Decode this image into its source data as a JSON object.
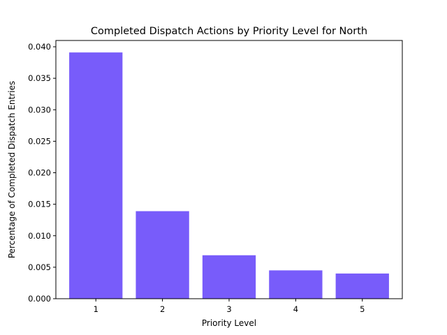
{
  "chart_data": {
    "type": "bar",
    "title": "Completed Dispatch Actions by Priority Level for North",
    "xlabel": "Priority Level",
    "ylabel": "Percentage of Completed Dispatch Entries",
    "categories": [
      "1",
      "2",
      "3",
      "4",
      "5"
    ],
    "values": [
      0.0391,
      0.0139,
      0.0069,
      0.0045,
      0.004
    ],
    "ylim": [
      0,
      0.041
    ],
    "yticks": [
      0.0,
      0.005,
      0.01,
      0.015,
      0.02,
      0.025,
      0.03,
      0.035,
      0.04
    ],
    "ytick_labels": [
      "0.000",
      "0.005",
      "0.010",
      "0.015",
      "0.020",
      "0.025",
      "0.030",
      "0.035",
      "0.040"
    ],
    "grid": false,
    "bar_color": "#785cfa"
  }
}
